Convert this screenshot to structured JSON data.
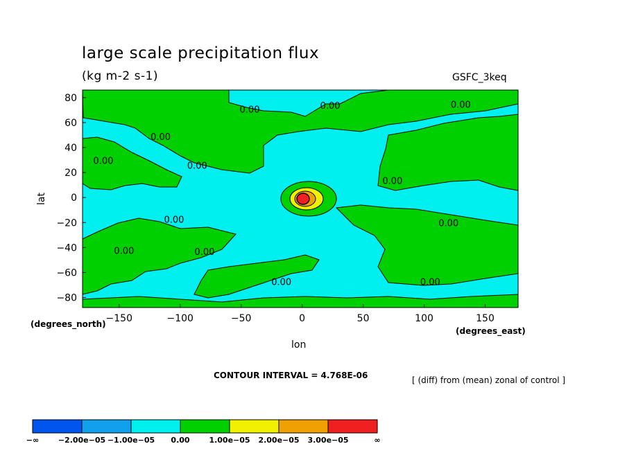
{
  "header": {
    "title": "large scale precipitation flux",
    "units": "(kg m-2 s-1)",
    "run": "GSFC_3keq"
  },
  "footer": {
    "contour_interval": "CONTOUR INTERVAL = 4.768E-06",
    "note": "[ (diff) from (mean) zonal of control ]"
  },
  "colors": {
    "land": "#00d000",
    "sea": "#00f0f0",
    "contour": "#000000"
  },
  "chart_data": {
    "type": "heatmap",
    "title": "large scale precipitation flux",
    "subtitle": "(kg m-2 s-1)",
    "xlabel": "lon",
    "ylabel": "lat",
    "x_units": "(degrees_east)",
    "y_units": "(degrees_north)",
    "xlim": [
      -180,
      177
    ],
    "ylim": [
      -88,
      86
    ],
    "x_ticks": [
      -150,
      -100,
      -50,
      0,
      50,
      100,
      150
    ],
    "x_tick_labels": [
      "−150",
      "−100",
      "−50",
      "0",
      "50",
      "100",
      "150"
    ],
    "y_ticks": [
      80,
      60,
      40,
      20,
      0,
      -20,
      -40,
      -60,
      -80
    ],
    "y_tick_labels": [
      "80",
      "60",
      "40",
      "20",
      "0",
      "−20",
      "−40",
      "−60",
      "−80"
    ],
    "contour_labels": [
      {
        "text": "0.00",
        "lon": -43,
        "lat": 68
      },
      {
        "text": "0.00",
        "lon": 23,
        "lat": 71
      },
      {
        "text": "0.00",
        "lon": 130,
        "lat": 72
      },
      {
        "text": "0.00",
        "lon": -116,
        "lat": 46
      },
      {
        "text": "0.00",
        "lon": -163,
        "lat": 27
      },
      {
        "text": "0.00",
        "lon": -86,
        "lat": 23
      },
      {
        "text": "0.00",
        "lon": 74,
        "lat": 11
      },
      {
        "text": "0.00",
        "lon": -105,
        "lat": -20
      },
      {
        "text": "0.00",
        "lon": -146,
        "lat": -45
      },
      {
        "text": "0.00",
        "lon": -80,
        "lat": -46
      },
      {
        "text": "0.00",
        "lon": 120,
        "lat": -23
      },
      {
        "text": "0.00",
        "lon": -17,
        "lat": -70
      },
      {
        "text": "0.00",
        "lon": 105,
        "lat": -70
      }
    ],
    "legend": {
      "labels": [
        "−∞",
        "−2.00e−05",
        "−1.00e−05",
        "0.00",
        "1.00e−05",
        "2.00e−05",
        "3.00e−05",
        "∞"
      ],
      "colors": [
        "#0055ee",
        "#10a0ee",
        "#00f0f0",
        "#00d000",
        "#f0f000",
        "#f0a000",
        "#f02020"
      ]
    }
  }
}
